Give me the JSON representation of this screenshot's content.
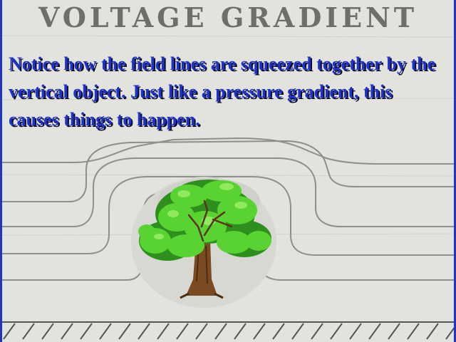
{
  "slide": {
    "title": "VOLTAGE GRADIENT",
    "body": "Notice how the field lines are squeezed together by the vertical object. Just like a pressure gradient, this causes things to happen."
  },
  "colors": {
    "frame": "#1f33c8",
    "background": "#e2e3dc",
    "title": "#6e6e6c",
    "text": "#1f33c8",
    "field_lines": "#8e8e8a",
    "foliage": "#4fcf2e",
    "trunk": "#7a4a22"
  },
  "icons": {
    "tree": "tree-clipart",
    "ground": "hatched-ground"
  }
}
